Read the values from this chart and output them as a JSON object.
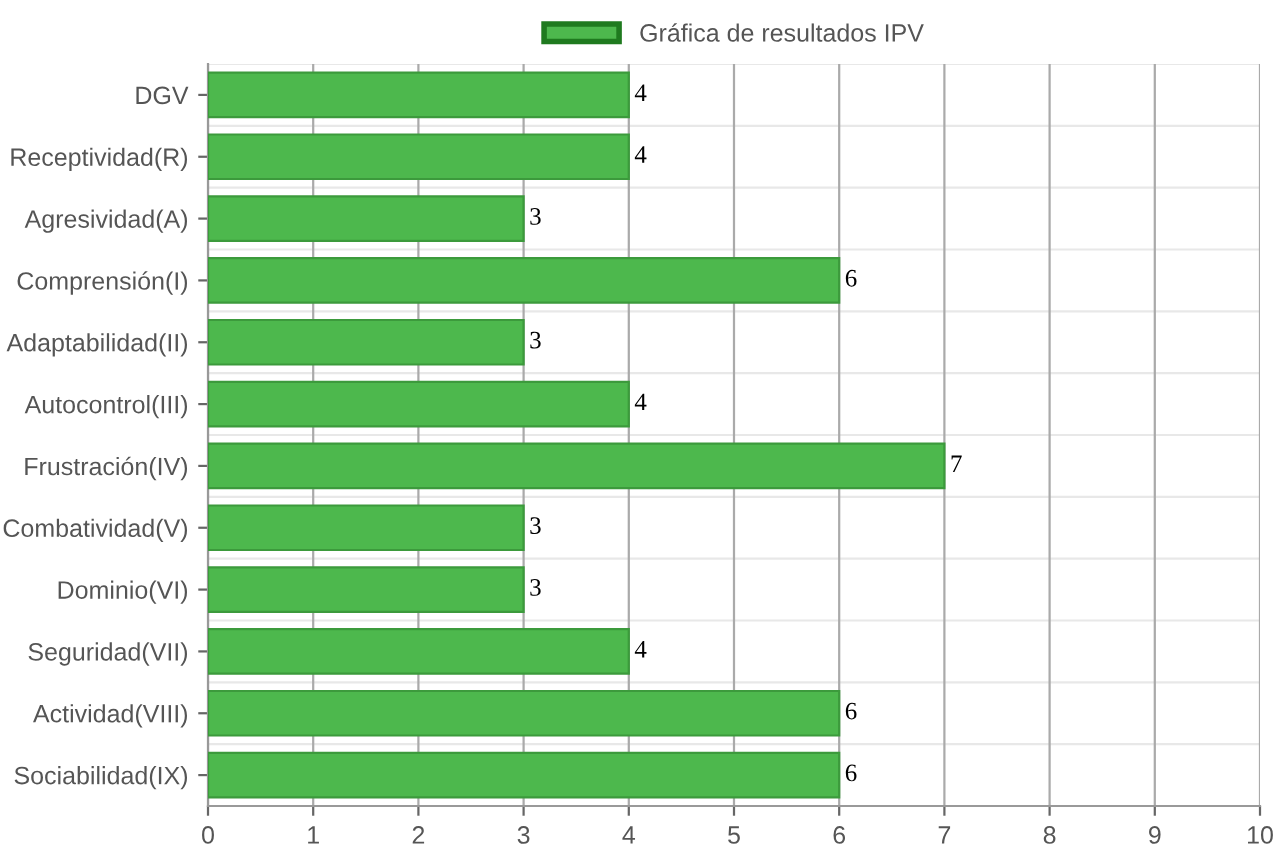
{
  "chart_data": {
    "type": "bar",
    "orientation": "horizontal",
    "categories": [
      "DGV",
      "Receptividad(R)",
      "Agresividad(A)",
      "Comprensión(I)",
      "Adaptabilidad(II)",
      "Autocontrol(III)",
      "Frustración(IV)",
      "Combatividad(V)",
      "Dominio(VI)",
      "Seguridad(VII)",
      "Actividad(VIII)",
      "Sociabilidad(IX)"
    ],
    "series": [
      {
        "name": "Gráfica de resultados IPV",
        "color": "#4db84d",
        "values": [
          4,
          4,
          3,
          6,
          3,
          4,
          7,
          3,
          3,
          4,
          6,
          6
        ]
      }
    ],
    "xlim": [
      0,
      10
    ],
    "xticks": [
      0,
      1,
      2,
      3,
      4,
      5,
      6,
      7,
      8,
      9,
      10
    ],
    "grid": true,
    "legend": "top",
    "data_labels": true
  }
}
